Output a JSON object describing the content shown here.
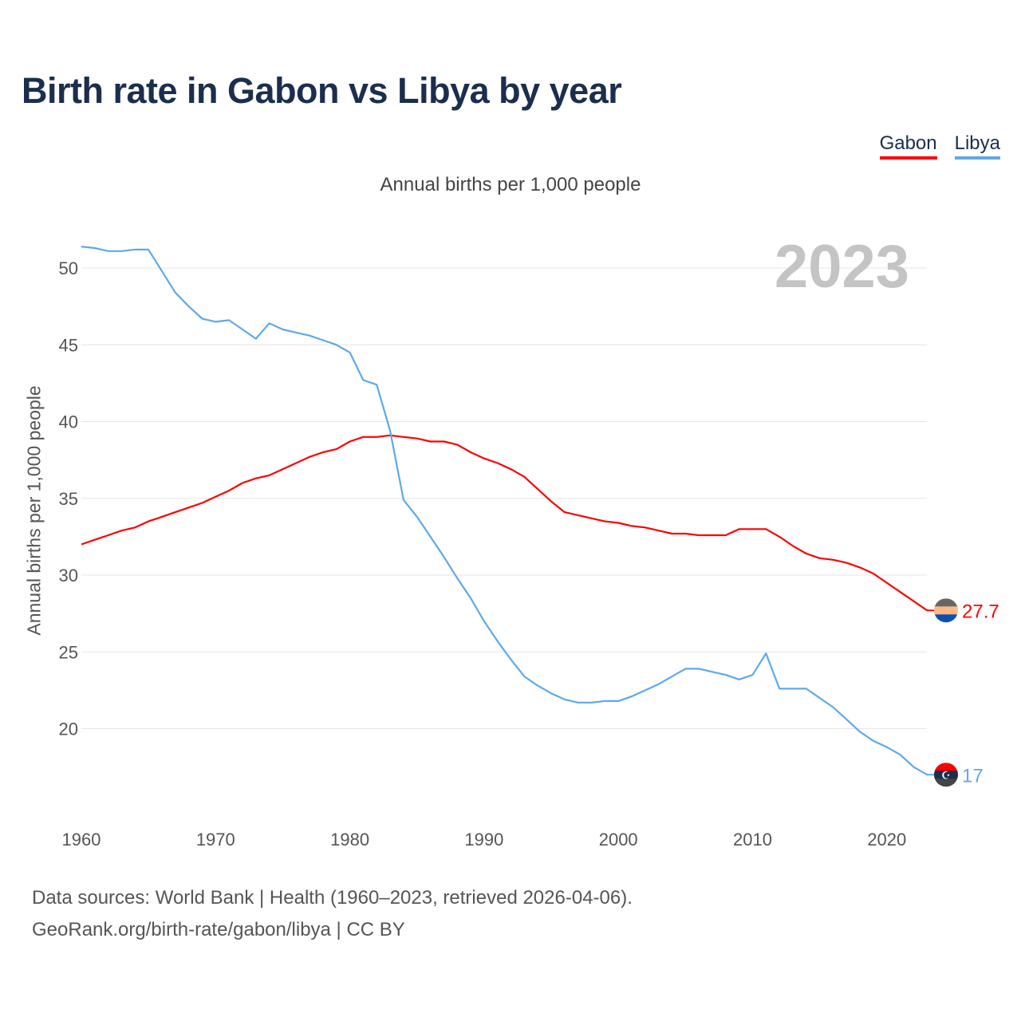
{
  "title": "Birth rate in Gabon vs Libya by year",
  "legend": [
    {
      "name": "Gabon",
      "color": "#ff0000"
    },
    {
      "name": "Libya",
      "color": "#5fa8ea"
    }
  ],
  "chart_data": {
    "type": "line",
    "title": "Birth rate in Gabon vs Libya by year",
    "subtitle": "Annual births per 1,000 people",
    "xlabel": "",
    "ylabel": "Annual births per 1,000 people",
    "year_label": "2023",
    "xlim": [
      1960,
      2023
    ],
    "ylim": [
      15,
      52.4
    ],
    "xticks": [
      1960,
      1970,
      1980,
      1990,
      2000,
      2010,
      2020
    ],
    "yticks": [
      20,
      25,
      30,
      35,
      40,
      45,
      50
    ],
    "grid": true,
    "legend_position": "top-right",
    "x": [
      1960,
      1961,
      1962,
      1963,
      1964,
      1965,
      1966,
      1967,
      1968,
      1969,
      1970,
      1971,
      1972,
      1973,
      1974,
      1975,
      1976,
      1977,
      1978,
      1979,
      1980,
      1981,
      1982,
      1983,
      1984,
      1985,
      1986,
      1987,
      1988,
      1989,
      1990,
      1991,
      1992,
      1993,
      1994,
      1995,
      1996,
      1997,
      1998,
      1999,
      2000,
      2001,
      2002,
      2003,
      2004,
      2005,
      2006,
      2007,
      2008,
      2009,
      2010,
      2011,
      2012,
      2013,
      2014,
      2015,
      2016,
      2017,
      2018,
      2019,
      2020,
      2021,
      2022,
      2023
    ],
    "series": [
      {
        "name": "Gabon",
        "color": "#ff0000",
        "end_label": "27.7",
        "flag_colors": [
          "#666666",
          "#ffb880",
          "#0a50b4"
        ],
        "values": [
          32.0,
          32.3,
          32.6,
          32.9,
          33.1,
          33.5,
          33.8,
          34.1,
          34.4,
          34.7,
          35.1,
          35.5,
          36.0,
          36.3,
          36.5,
          36.9,
          37.3,
          37.7,
          38.0,
          38.2,
          38.7,
          39.0,
          39.0,
          39.1,
          39.0,
          38.9,
          38.7,
          38.7,
          38.5,
          38.0,
          37.6,
          37.3,
          36.9,
          36.4,
          35.6,
          34.8,
          34.1,
          33.9,
          33.7,
          33.5,
          33.4,
          33.2,
          33.1,
          32.9,
          32.7,
          32.7,
          32.6,
          32.6,
          32.6,
          33.0,
          33.0,
          33.0,
          32.5,
          31.9,
          31.4,
          31.1,
          31.0,
          30.8,
          30.5,
          30.1,
          29.5,
          28.9,
          28.3,
          27.7
        ]
      },
      {
        "name": "Libya",
        "color": "#5fa8ea",
        "end_label": "17",
        "flag_colors": [
          "#ff0000",
          "#1b2e4d",
          "#444444"
        ],
        "values": [
          51.4,
          51.3,
          51.1,
          51.1,
          51.2,
          51.2,
          49.8,
          48.4,
          47.5,
          46.7,
          46.5,
          46.6,
          46.0,
          45.4,
          46.4,
          46.0,
          45.8,
          45.6,
          45.3,
          45.0,
          44.5,
          42.7,
          42.4,
          39.4,
          34.9,
          33.8,
          32.5,
          31.2,
          29.8,
          28.5,
          27.0,
          25.7,
          24.5,
          23.4,
          22.8,
          22.3,
          21.9,
          21.7,
          21.7,
          21.8,
          21.8,
          22.1,
          22.5,
          22.9,
          23.4,
          23.9,
          23.9,
          23.7,
          23.5,
          23.2,
          23.5,
          24.9,
          22.6,
          22.6,
          22.6,
          22.0,
          21.4,
          20.6,
          19.8,
          19.2,
          18.8,
          18.3,
          17.5,
          17.0
        ]
      }
    ]
  },
  "footer": {
    "line1": "Data sources: World Bank | Health (1960–2023, retrieved 2026-04-06).",
    "line2": "GeoRank.org/birth-rate/gabon/libya | CC BY"
  }
}
